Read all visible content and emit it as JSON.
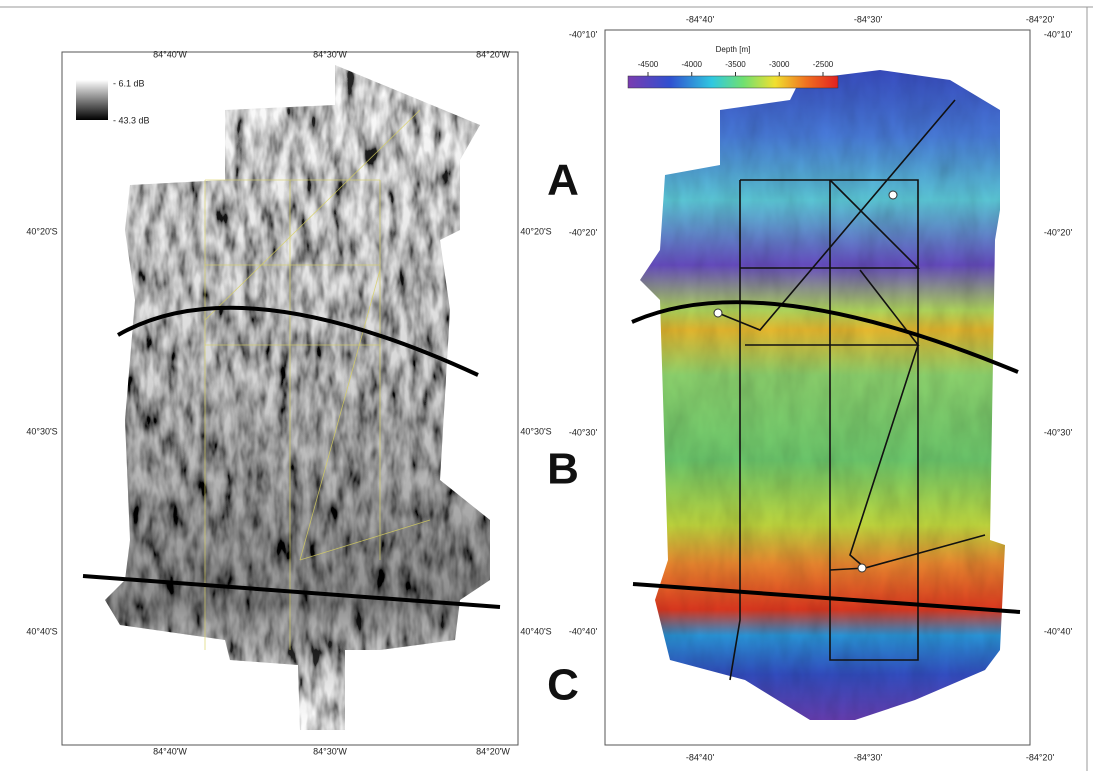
{
  "left_map": {
    "scale_labels": [
      "- 6.1 dB",
      "- 43.3 dB"
    ],
    "x_labels_top": [
      "84°40'W",
      "84°30'W",
      "84°20'W"
    ],
    "x_labels_bottom": [
      "84°40'W",
      "84°30'W",
      "84°20'W"
    ],
    "y_labels_left": [
      "40°20'S",
      "40°30'S",
      "40°40'S"
    ],
    "y_labels_right": [
      "40°20'S",
      "40°30'S",
      "40°40'S"
    ]
  },
  "right_map": {
    "colorbar": {
      "title": "Depth [m]",
      "ticks": [
        -4500,
        -4000,
        -3500,
        -3000,
        -2500
      ]
    },
    "x_labels_top": [
      "-84°40'",
      "-84°30'",
      "-84°20'"
    ],
    "x_labels_bottom": [
      "-84°40'",
      "-84°30'",
      "-84°20'"
    ],
    "y_labels_left": [
      "-40°10'",
      "-40°20'",
      "-40°30'",
      "-40°40'"
    ],
    "y_labels_right": [
      "-40°10'",
      "-40°20'",
      "-40°30'",
      "-40°40'"
    ]
  },
  "section_labels": [
    "A",
    "B",
    "C"
  ]
}
